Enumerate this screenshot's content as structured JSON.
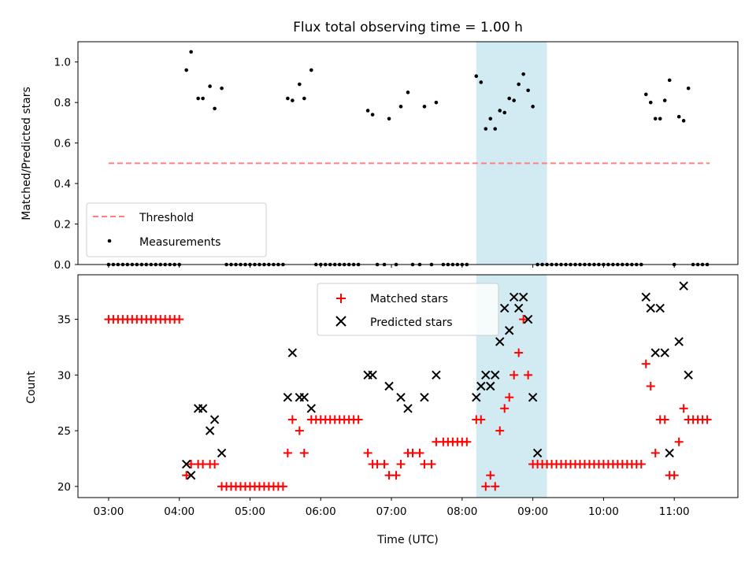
{
  "title": "Flux total observing time = 1.00 h",
  "xlabel": "Time (UTC)",
  "x_ticks": [
    "03:00",
    "04:00",
    "05:00",
    "06:00",
    "07:00",
    "08:00",
    "09:00",
    "10:00",
    "11:00"
  ],
  "colors": {
    "threshold": "#ff7f7f",
    "measure": "#000000",
    "matched": "#ff0000",
    "predicted": "#000000",
    "highlight": "#add8e6"
  },
  "chart_data": [
    {
      "type": "scatter",
      "ylabel": "Matched/Predicted stars",
      "ylim": [
        0,
        1.1
      ],
      "y_ticks": [
        "0.0",
        "0.2",
        "0.4",
        "0.6",
        "0.8",
        "1.0"
      ],
      "xlim": [
        "02:34",
        "11:54"
      ],
      "highlight_span": [
        "08:12",
        "09:12"
      ],
      "legend": {
        "placement": "lower-left",
        "entries": [
          "Threshold",
          "Measurements"
        ]
      },
      "series": [
        {
          "name": "Threshold",
          "kind": "dashed-line",
          "x": [
            "03:00",
            "11:30"
          ],
          "y": [
            0.5,
            0.5
          ]
        },
        {
          "name": "Measurements",
          "kind": "dots",
          "x": [
            "03:00",
            "03:04",
            "03:08",
            "03:12",
            "03:16",
            "03:20",
            "03:24",
            "03:28",
            "03:32",
            "03:36",
            "03:40",
            "03:44",
            "03:48",
            "03:52",
            "03:56",
            "04:00",
            "04:06",
            "04:10",
            "04:16",
            "04:20",
            "04:26",
            "04:30",
            "04:36",
            "04:40",
            "04:44",
            "04:48",
            "04:52",
            "04:56",
            "05:00",
            "05:04",
            "05:08",
            "05:12",
            "05:16",
            "05:20",
            "05:24",
            "05:28",
            "05:32",
            "05:36",
            "05:42",
            "05:46",
            "05:52",
            "05:56",
            "06:00",
            "06:04",
            "06:08",
            "06:12",
            "06:16",
            "06:20",
            "06:24",
            "06:28",
            "06:32",
            "06:40",
            "06:44",
            "06:48",
            "06:54",
            "06:58",
            "07:04",
            "07:08",
            "07:14",
            "07:18",
            "07:24",
            "07:28",
            "07:34",
            "07:38",
            "07:44",
            "07:48",
            "07:52",
            "07:56",
            "08:00",
            "08:04",
            "08:12",
            "08:16",
            "08:20",
            "08:24",
            "08:28",
            "08:32",
            "08:36",
            "08:40",
            "08:44",
            "08:48",
            "08:52",
            "08:56",
            "09:00",
            "09:04",
            "09:08",
            "09:12",
            "09:16",
            "09:20",
            "09:24",
            "09:28",
            "09:32",
            "09:36",
            "09:40",
            "09:44",
            "09:48",
            "09:52",
            "09:56",
            "10:00",
            "10:04",
            "10:08",
            "10:12",
            "10:16",
            "10:20",
            "10:24",
            "10:28",
            "10:32",
            "10:36",
            "10:40",
            "10:44",
            "10:48",
            "10:52",
            "10:56",
            "11:00",
            "11:04",
            "11:08",
            "11:12",
            "11:16",
            "11:20",
            "11:24",
            "11:28"
          ],
          "y": [
            0,
            0,
            0,
            0,
            0,
            0,
            0,
            0,
            0,
            0,
            0,
            0,
            0,
            0,
            0,
            0,
            0.96,
            1.05,
            0.82,
            0.82,
            0.88,
            0.77,
            0.87,
            0,
            0,
            0,
            0,
            0,
            0,
            0,
            0,
            0,
            0,
            0,
            0,
            0,
            0.82,
            0.81,
            0.89,
            0.82,
            0.96,
            0,
            0,
            0,
            0,
            0,
            0,
            0,
            0,
            0,
            0,
            0.76,
            0.74,
            0,
            0,
            0.72,
            0,
            0.78,
            0.85,
            0,
            0,
            0.78,
            0,
            0.8,
            0,
            0,
            0,
            0,
            0,
            0,
            0.93,
            0.9,
            0.67,
            0.72,
            0.67,
            0.76,
            0.75,
            0.82,
            0.81,
            0.89,
            0.94,
            0.86,
            0.78,
            0,
            0,
            0,
            0,
            0,
            0,
            0,
            0,
            0,
            0,
            0,
            0,
            0,
            0,
            0,
            0,
            0,
            0,
            0,
            0,
            0,
            0,
            0,
            0.84,
            0.8,
            0.72,
            0.72,
            0.81,
            0.91,
            0,
            0.73,
            0.71,
            0.87,
            0,
            0,
            0,
            0
          ]
        }
      ]
    },
    {
      "type": "scatter",
      "ylabel": "Count",
      "ylim": [
        19,
        39
      ],
      "y_ticks": [
        "20",
        "25",
        "30",
        "35"
      ],
      "xlim": [
        "02:34",
        "11:54"
      ],
      "highlight_span": [
        "08:12",
        "09:12"
      ],
      "legend": {
        "placement": "top-center",
        "entries": [
          "Matched stars",
          "Predicted stars"
        ]
      },
      "series": [
        {
          "name": "Matched stars",
          "marker": "+",
          "x": [
            "03:00",
            "03:04",
            "03:08",
            "03:12",
            "03:16",
            "03:20",
            "03:24",
            "03:28",
            "03:32",
            "03:36",
            "03:40",
            "03:44",
            "03:48",
            "03:52",
            "03:56",
            "04:00",
            "04:06",
            "04:10",
            "04:16",
            "04:20",
            "04:26",
            "04:30",
            "04:36",
            "04:40",
            "04:44",
            "04:48",
            "04:52",
            "04:56",
            "05:00",
            "05:04",
            "05:08",
            "05:12",
            "05:16",
            "05:20",
            "05:24",
            "05:28",
            "05:32",
            "05:36",
            "05:42",
            "05:46",
            "05:52",
            "05:56",
            "06:00",
            "06:04",
            "06:08",
            "06:12",
            "06:16",
            "06:20",
            "06:24",
            "06:28",
            "06:32",
            "06:40",
            "06:44",
            "06:48",
            "06:54",
            "06:58",
            "07:04",
            "07:08",
            "07:14",
            "07:18",
            "07:24",
            "07:28",
            "07:34",
            "07:38",
            "07:44",
            "07:48",
            "07:52",
            "07:56",
            "08:00",
            "08:04",
            "08:12",
            "08:16",
            "08:20",
            "08:24",
            "08:28",
            "08:32",
            "08:36",
            "08:40",
            "08:44",
            "08:48",
            "08:52",
            "08:56",
            "09:00",
            "09:04",
            "09:08",
            "09:12",
            "09:16",
            "09:20",
            "09:24",
            "09:28",
            "09:32",
            "09:36",
            "09:40",
            "09:44",
            "09:48",
            "09:52",
            "09:56",
            "10:00",
            "10:04",
            "10:08",
            "10:12",
            "10:16",
            "10:20",
            "10:24",
            "10:28",
            "10:32",
            "10:36",
            "10:40",
            "10:44",
            "10:48",
            "10:52",
            "10:56",
            "11:00",
            "11:04",
            "11:08",
            "11:12",
            "11:16",
            "11:20",
            "11:24",
            "11:28"
          ],
          "y": [
            35,
            35,
            35,
            35,
            35,
            35,
            35,
            35,
            35,
            35,
            35,
            35,
            35,
            35,
            35,
            35,
            21,
            22,
            22,
            22,
            22,
            22,
            20,
            20,
            20,
            20,
            20,
            20,
            20,
            20,
            20,
            20,
            20,
            20,
            20,
            20,
            23,
            26,
            25,
            23,
            26,
            26,
            26,
            26,
            26,
            26,
            26,
            26,
            26,
            26,
            26,
            23,
            22,
            22,
            22,
            21,
            21,
            22,
            23,
            23,
            23,
            22,
            22,
            24,
            24,
            24,
            24,
            24,
            24,
            24,
            26,
            26,
            20,
            21,
            20,
            25,
            27,
            28,
            30,
            32,
            35,
            30,
            22,
            22,
            22,
            22,
            22,
            22,
            22,
            22,
            22,
            22,
            22,
            22,
            22,
            22,
            22,
            22,
            22,
            22,
            22,
            22,
            22,
            22,
            22,
            22,
            31,
            29,
            23,
            26,
            26,
            21,
            21,
            24,
            27,
            26,
            26,
            26,
            26,
            26
          ]
        },
        {
          "name": "Predicted stars",
          "marker": "x",
          "x": [
            "04:06",
            "04:10",
            "04:16",
            "04:20",
            "04:26",
            "04:30",
            "04:36",
            "05:32",
            "05:36",
            "05:42",
            "05:46",
            "05:52",
            "06:40",
            "06:44",
            "06:58",
            "07:08",
            "07:14",
            "07:28",
            "07:38",
            "08:12",
            "08:16",
            "08:20",
            "08:24",
            "08:28",
            "08:32",
            "08:36",
            "08:40",
            "08:44",
            "08:48",
            "08:52",
            "08:56",
            "09:00",
            "09:04",
            "10:36",
            "10:40",
            "10:44",
            "10:48",
            "10:52",
            "10:56",
            "11:04",
            "11:08",
            "11:12"
          ],
          "y": [
            22,
            21,
            27,
            27,
            25,
            26,
            23,
            28,
            32,
            28,
            28,
            27,
            30,
            30,
            29,
            28,
            27,
            28,
            30,
            28,
            29,
            30,
            29,
            30,
            33,
            36,
            34,
            37,
            36,
            37,
            35,
            28,
            23,
            37,
            36,
            32,
            36,
            32,
            23,
            33,
            38,
            30
          ]
        }
      ]
    }
  ]
}
